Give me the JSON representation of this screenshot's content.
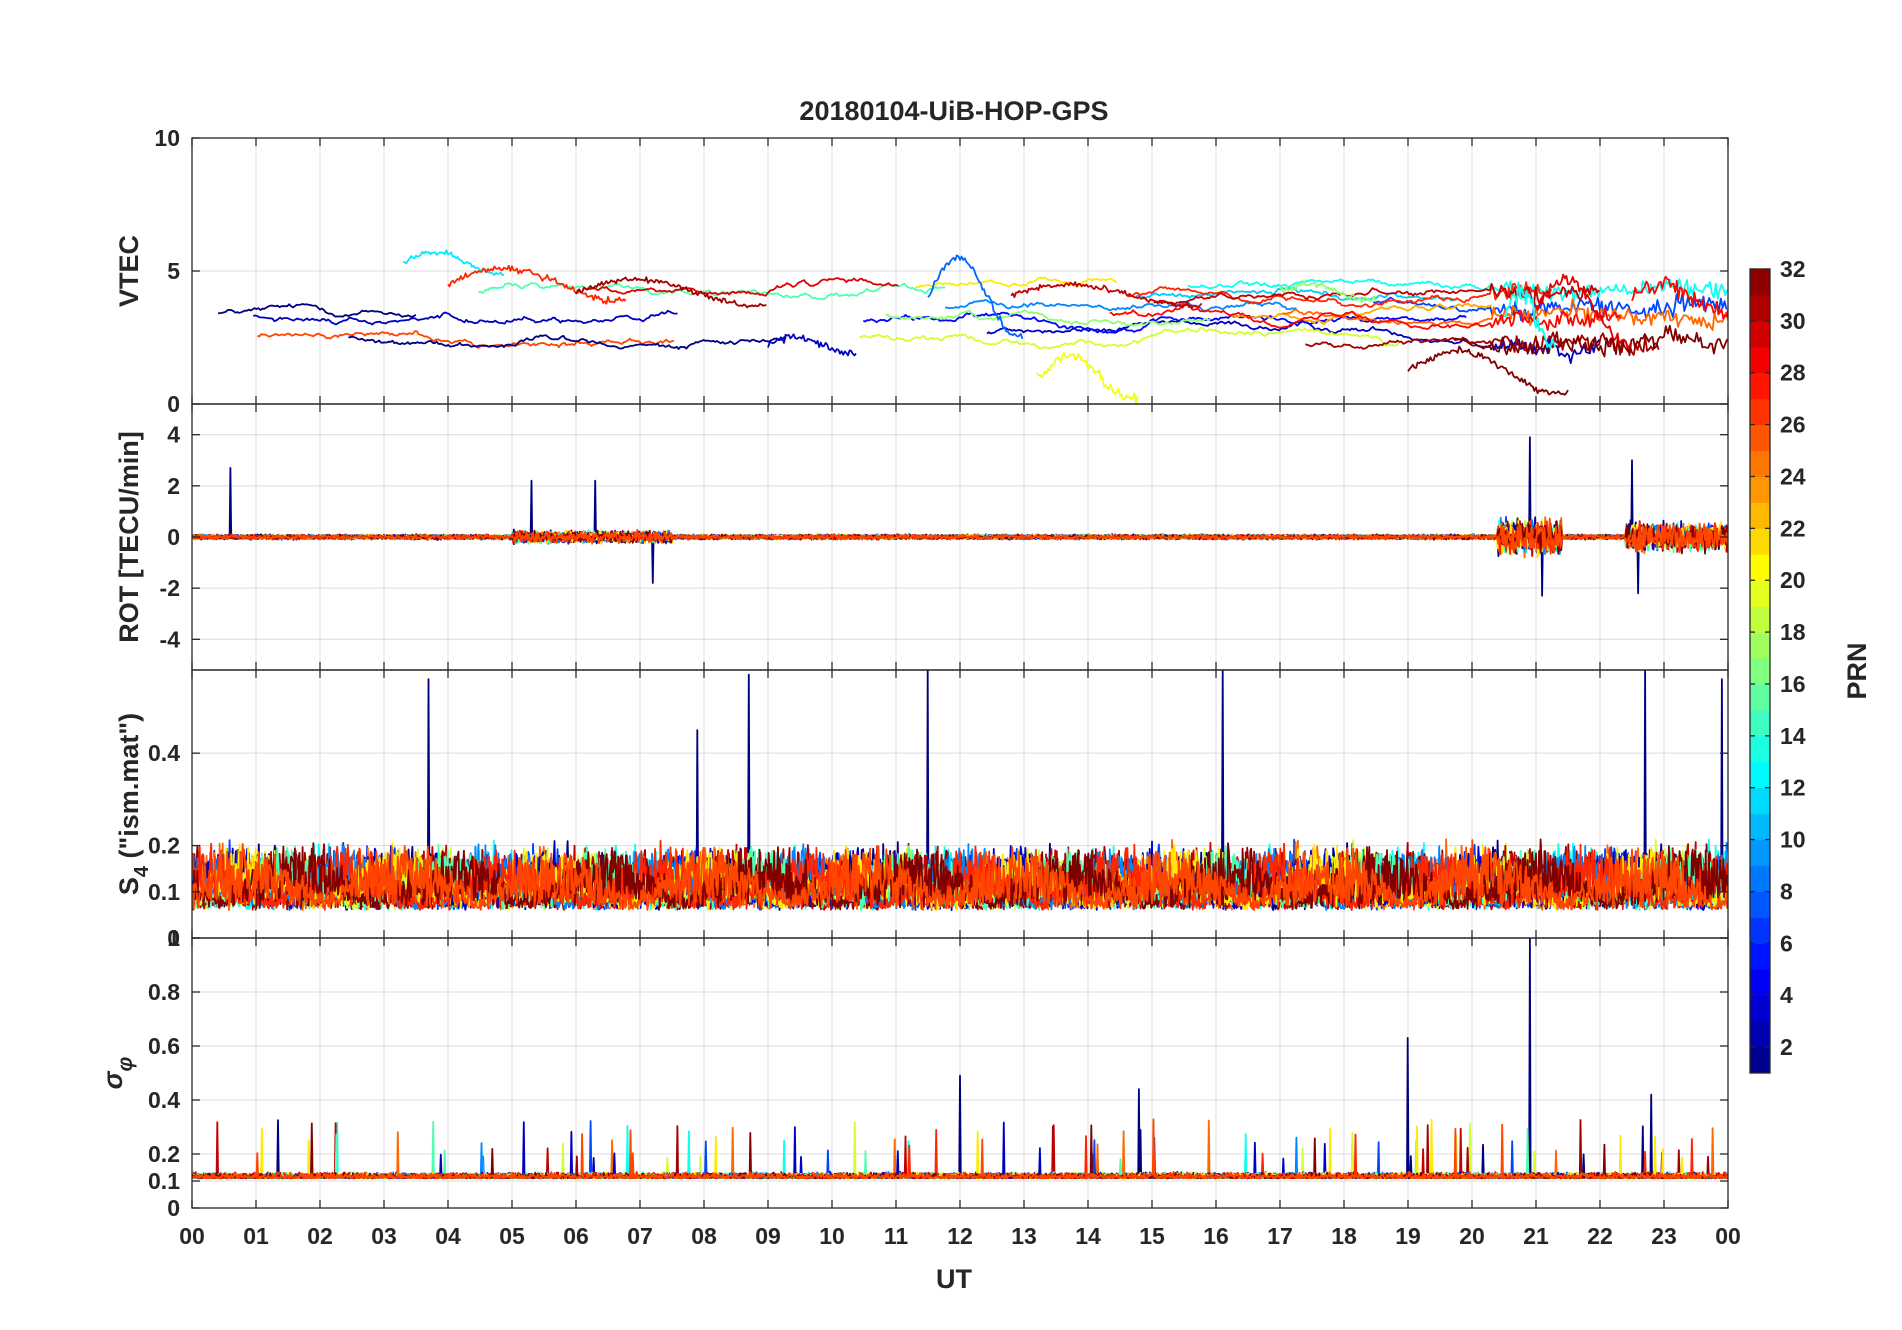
{
  "chart_data": {
    "type": "line",
    "title": "20180104-UiB-HOP-GPS",
    "xlabel": "UT",
    "x_ticks": [
      "00",
      "01",
      "02",
      "03",
      "04",
      "05",
      "06",
      "07",
      "08",
      "09",
      "10",
      "11",
      "12",
      "13",
      "14",
      "15",
      "16",
      "17",
      "18",
      "19",
      "20",
      "21",
      "22",
      "23",
      "00"
    ],
    "x_range_hours": [
      0,
      24
    ],
    "colorbar": {
      "label": "PRN",
      "range": [
        1,
        32
      ],
      "ticks": [
        "2",
        "4",
        "6",
        "8",
        "10",
        "12",
        "14",
        "16",
        "18",
        "20",
        "22",
        "24",
        "26",
        "28",
        "30",
        "32"
      ],
      "colormap": "jet"
    },
    "panels": [
      {
        "id": "vtec",
        "ylabel": "VTEC",
        "ylim": [
          0,
          10
        ],
        "yticks": [
          0,
          5,
          10
        ],
        "ytick_labels": [
          "0",
          "5",
          "10"
        ],
        "description_series": "approximate VTEC per PRN, 1-6 TECU, increased variability after 20 UT",
        "series": [
          {
            "prn": 12,
            "start": 3.3,
            "end": 4.9,
            "base": 5.3,
            "amp": 0.4,
            "noise": 0.15
          },
          {
            "prn": 27,
            "start": 4.0,
            "end": 6.8,
            "base": 4.5,
            "amp": 0.6,
            "noise": 0.2
          },
          {
            "prn": 31,
            "start": 6.0,
            "end": 9.0,
            "base": 4.2,
            "amp": 0.5,
            "noise": 0.15
          },
          {
            "prn": 3,
            "start": 9.0,
            "end": 10.4,
            "base": 2.2,
            "amp": 0.3,
            "noise": 0.2
          },
          {
            "prn": 8,
            "start": 11.5,
            "end": 13.0,
            "base": 4.0,
            "amp": 1.5,
            "noise": 0.2
          },
          {
            "prn": 30,
            "start": 12.8,
            "end": 15.8,
            "base": 4.1,
            "amp": 0.4,
            "noise": 0.15
          },
          {
            "prn": 20,
            "start": 13.2,
            "end": 14.8,
            "base": 1.0,
            "amp": 0.8,
            "noise": 0.35
          },
          {
            "prn": 17,
            "start": 17.0,
            "end": 18.5,
            "base": 4.2,
            "amp": 0.3,
            "noise": 0.2
          },
          {
            "prn": 32,
            "start": 19.0,
            "end": 21.5,
            "base": 1.2,
            "amp": 0.8,
            "noise": 0.2
          },
          {
            "prn": 13,
            "start": 20.5,
            "end": 21.3,
            "base": 3.3,
            "amp": 1.0,
            "noise": 0.6
          },
          {
            "prn": 28,
            "start": 22.5,
            "end": 24.0,
            "base": 4.0,
            "amp": 0.5,
            "noise": 0.5
          },
          {
            "prn": 29,
            "start": 21.0,
            "end": 22.5,
            "base": 3.5,
            "amp": 1.2,
            "noise": 0.3
          }
        ]
      },
      {
        "id": "rot",
        "ylabel": "ROT [TECU/min]",
        "ylim": [
          -5.2,
          5.2
        ],
        "yticks": [
          -4,
          -2,
          0,
          2,
          4
        ],
        "ytick_labels": [
          "-4",
          "-2",
          "0",
          "2",
          "4"
        ],
        "peak_events": [
          {
            "hour": 0.6,
            "value": 2.7
          },
          {
            "hour": 5.3,
            "value": 2.2
          },
          {
            "hour": 6.3,
            "value": 2.2
          },
          {
            "hour": 7.2,
            "value": -1.8
          },
          {
            "hour": 20.9,
            "value": 3.9
          },
          {
            "hour": 21.1,
            "value": -2.3
          },
          {
            "hour": 22.5,
            "value": 3.0
          },
          {
            "hour": 22.6,
            "value": -2.2
          }
        ]
      },
      {
        "id": "s4",
        "ylabel_main": "S",
        "ylabel_sub": "4",
        "ylabel_rest": " (\"ism.mat\")",
        "ylim": [
          0,
          0.58
        ],
        "yticks": [
          0,
          0.1,
          0.2,
          0.4
        ],
        "ytick_labels": [
          "0",
          "0.1",
          "0.2",
          "0.4"
        ],
        "peak_events": [
          {
            "hour": 3.7,
            "value": 0.56
          },
          {
            "hour": 7.9,
            "value": 0.45
          },
          {
            "hour": 8.7,
            "value": 0.57
          },
          {
            "hour": 11.5,
            "value": 0.58
          },
          {
            "hour": 16.1,
            "value": 0.58
          },
          {
            "hour": 22.7,
            "value": 0.58
          },
          {
            "hour": 23.9,
            "value": 0.56
          }
        ]
      },
      {
        "id": "sigma_phi",
        "ylabel_symbol": "σ",
        "ylabel_sub": "φ",
        "ylim": [
          0,
          1.0
        ],
        "yticks": [
          0,
          0.1,
          0.2,
          0.4,
          0.6,
          0.8,
          1
        ],
        "ytick_labels": [
          "0",
          "0.1",
          "0.2",
          "0.4",
          "0.6",
          "0.8",
          "1"
        ],
        "peak_events": [
          {
            "hour": 12.0,
            "value": 0.49
          },
          {
            "hour": 14.8,
            "value": 0.44
          },
          {
            "hour": 19.0,
            "value": 0.63
          },
          {
            "hour": 20.9,
            "value": 1.0
          },
          {
            "hour": 22.8,
            "value": 0.42
          }
        ]
      }
    ]
  }
}
